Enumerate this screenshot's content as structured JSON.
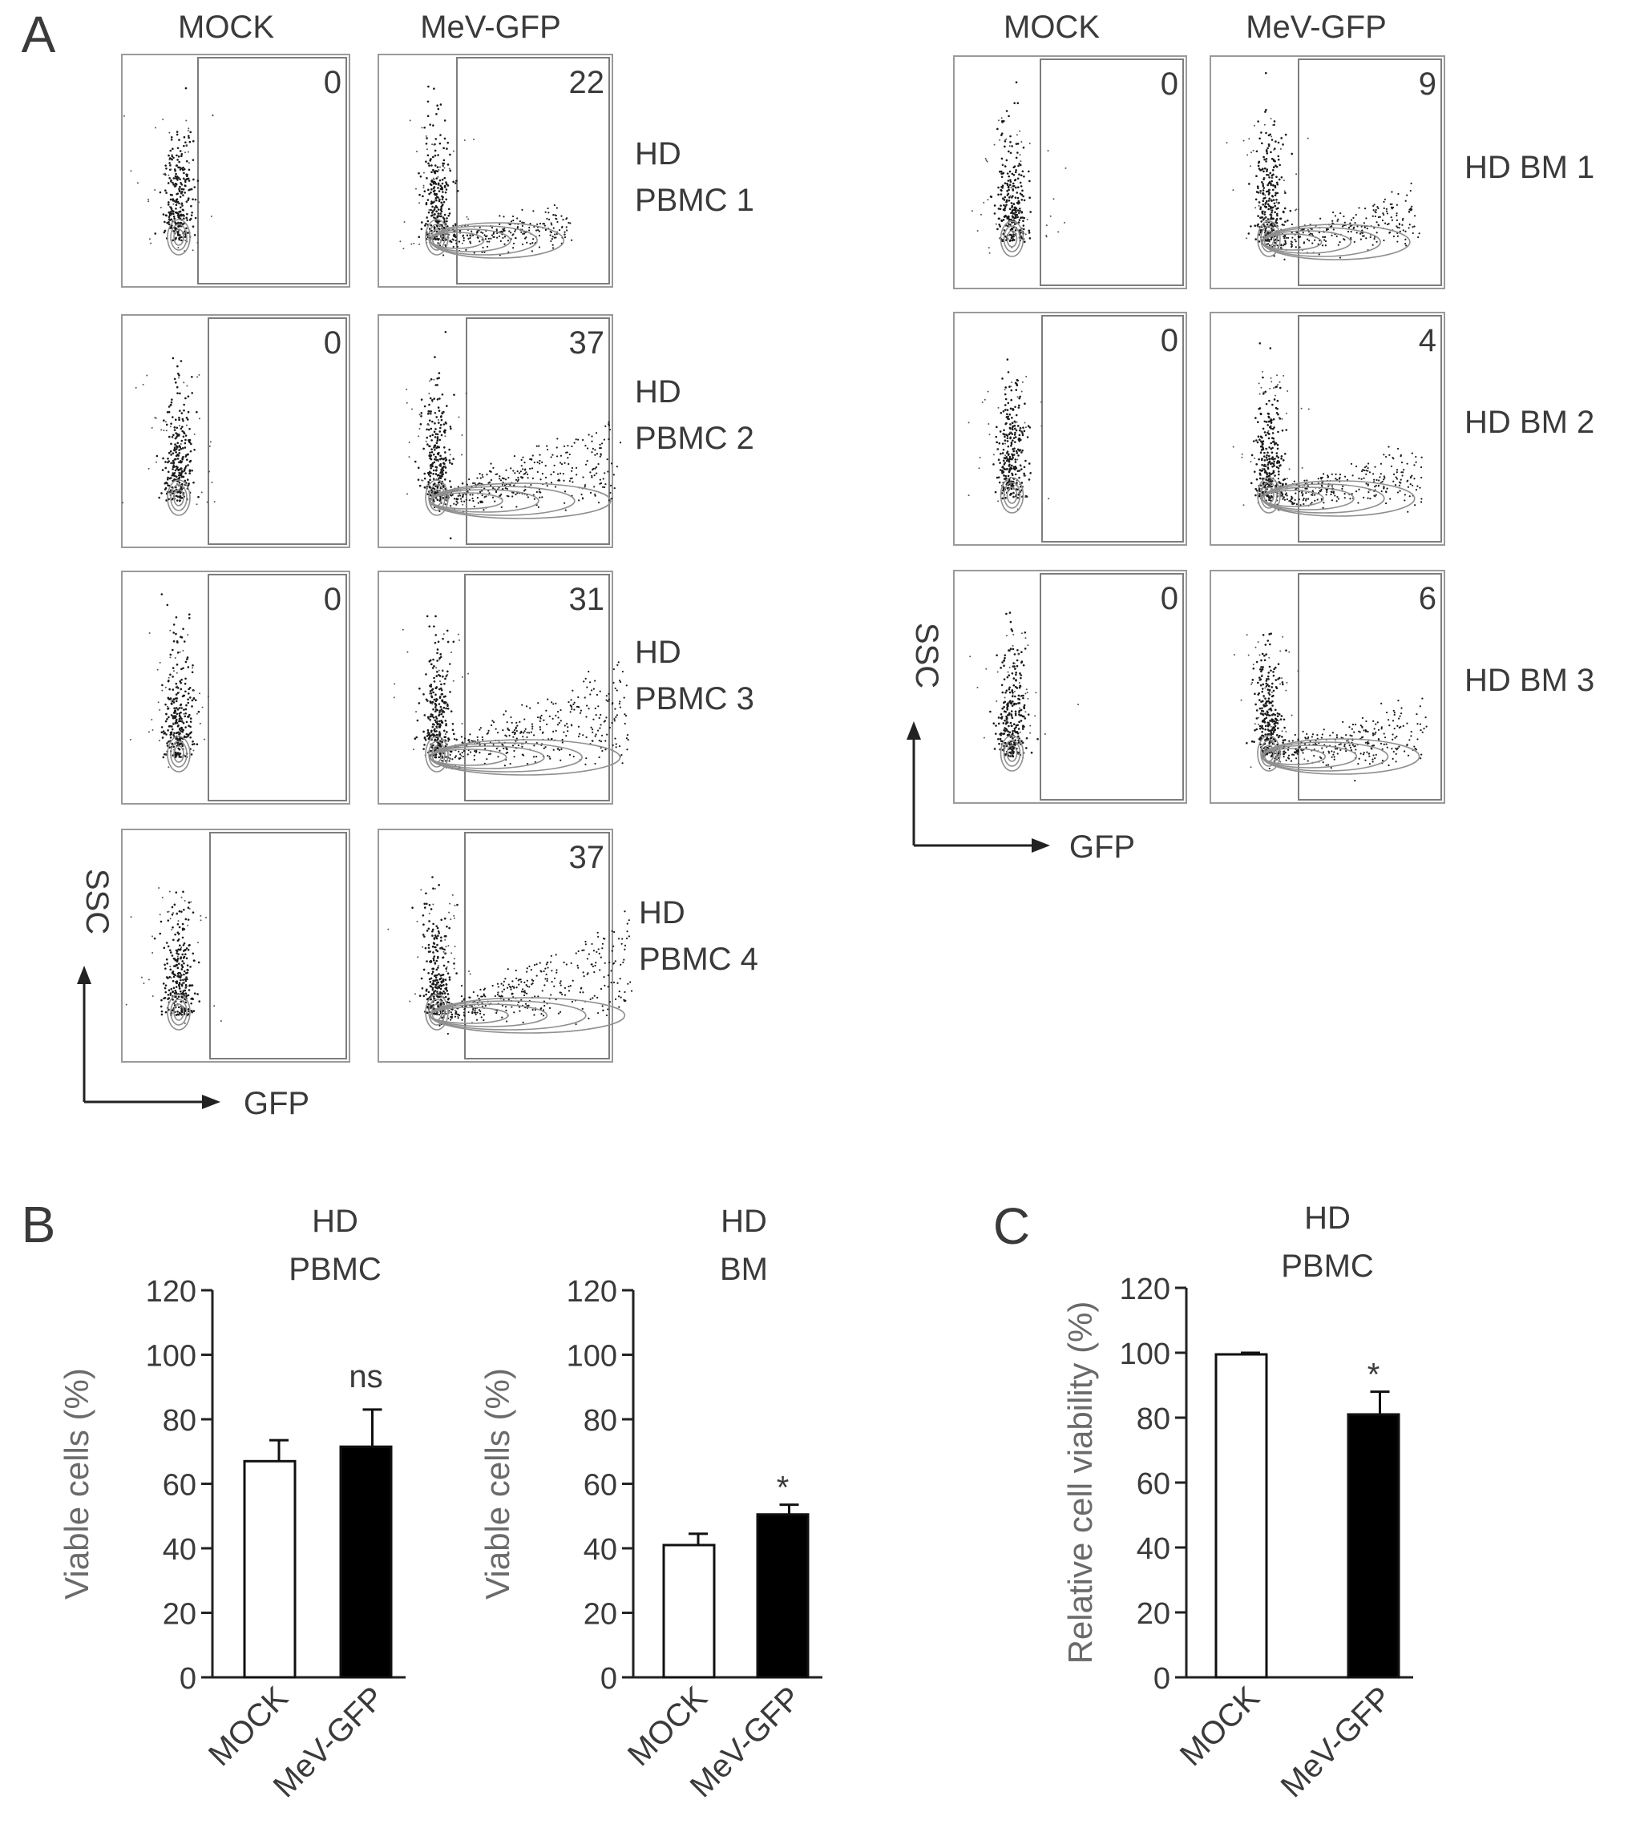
{
  "panel_letters": [
    "A",
    "B",
    "C"
  ],
  "panel_a": {
    "left_group": {
      "columns": [
        "MOCK",
        "MeV-GFP"
      ],
      "rows": [
        {
          "label_lines": [
            "HD",
            "PBMC 1"
          ],
          "values": [
            "0",
            "22"
          ]
        },
        {
          "label_lines": [
            "HD",
            "PBMC 2"
          ],
          "values": [
            "0",
            "37"
          ]
        },
        {
          "label_lines": [
            "HD",
            "PBMC 3"
          ],
          "values": [
            "0",
            "31"
          ]
        },
        {
          "label_lines": [
            "HD",
            "PBMC 4"
          ],
          "values": [
            "",
            "37"
          ]
        }
      ],
      "y_axis": "SSC",
      "x_axis": "GFP"
    },
    "right_group": {
      "columns": [
        "MOCK",
        "MeV-GFP"
      ],
      "rows": [
        {
          "label_lines": [
            "HD BM 1"
          ],
          "values": [
            "0",
            "9"
          ]
        },
        {
          "label_lines": [
            "HD BM 2"
          ],
          "values": [
            "0",
            "4"
          ]
        },
        {
          "label_lines": [
            "HD BM 3"
          ],
          "values": [
            "0",
            "6"
          ]
        }
      ],
      "y_axis": "SSC",
      "x_axis": "GFP"
    }
  },
  "chart_data": [
    {
      "type": "bar",
      "title": "HD\nPBMC",
      "ylabel": "Viable cells (%)",
      "categories": [
        "MOCK",
        "MeV-GFP"
      ],
      "values": [
        67,
        71.5
      ],
      "errors": [
        6.5,
        11.5
      ],
      "fills": [
        "#ffffff",
        "#000000"
      ],
      "annotations": [
        "",
        "ns"
      ],
      "ylim": [
        0,
        120
      ],
      "yticks": [
        0,
        20,
        40,
        60,
        80,
        100,
        120
      ]
    },
    {
      "type": "bar",
      "title": "HD\nBM",
      "ylabel": "Viable cells (%)",
      "categories": [
        "MOCK",
        "MeV-GFP"
      ],
      "values": [
        41,
        50.5
      ],
      "errors": [
        3.5,
        3
      ],
      "fills": [
        "#ffffff",
        "#000000"
      ],
      "annotations": [
        "",
        "*"
      ],
      "ylim": [
        0,
        120
      ],
      "yticks": [
        0,
        20,
        40,
        60,
        80,
        100,
        120
      ]
    },
    {
      "type": "bar",
      "title": "HD\nPBMC",
      "ylabel": "Relative cell viability (%)",
      "categories": [
        "MOCK",
        "MeV-GFP"
      ],
      "values": [
        99.5,
        81
      ],
      "errors": [
        0.5,
        7
      ],
      "fills": [
        "#ffffff",
        "#000000"
      ],
      "annotations": [
        "",
        "*"
      ],
      "ylim": [
        0,
        120
      ],
      "yticks": [
        0,
        20,
        40,
        60,
        80,
        100,
        120
      ]
    }
  ],
  "colors": {
    "text": "#3a3a3a",
    "axis": "#222222",
    "frame": "#8a8a8a",
    "dot": "#1a1a1a",
    "contour": "#8f8f8f"
  }
}
